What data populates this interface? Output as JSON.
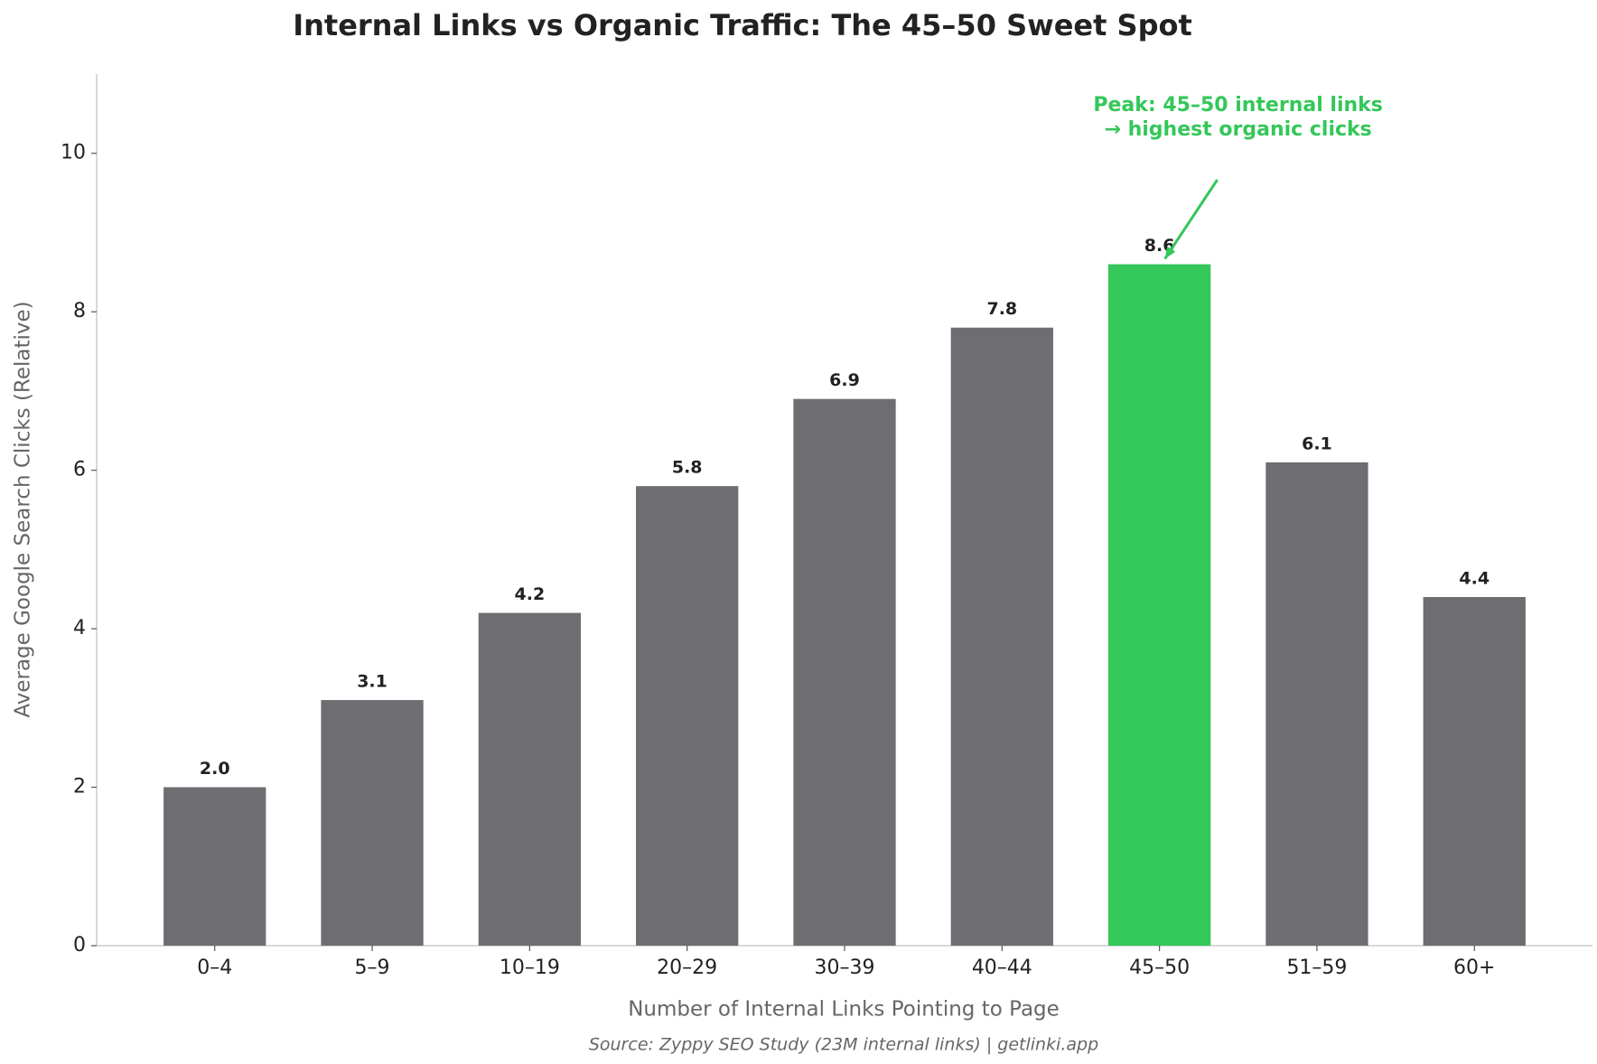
{
  "chart_data": {
    "type": "bar",
    "title": "Internal Links vs Organic Traffic: The 45–50 Sweet Spot",
    "x_label": "Number of Internal Links Pointing to Page",
    "y_label": "Average Google Search Clicks (Relative)",
    "source": "Source: Zyppy SEO Study (23M internal links) | getlinki.app",
    "categories": [
      "0–4",
      "5–9",
      "10–19",
      "20–29",
      "30–39",
      "40–44",
      "45–50",
      "51–59",
      "60+"
    ],
    "values": [
      2.0,
      3.1,
      4.2,
      5.8,
      6.9,
      7.8,
      8.6,
      6.1,
      4.4
    ],
    "value_labels": [
      "2.0",
      "3.1",
      "4.2",
      "5.8",
      "6.9",
      "7.8",
      "8.6",
      "6.1",
      "4.4"
    ],
    "colors": [
      "#6e6d72",
      "#6e6d72",
      "#6e6d72",
      "#6e6d72",
      "#6e6d72",
      "#6e6d72",
      "#34c759",
      "#6e6d72",
      "#6e6d72"
    ],
    "ylim": [
      0,
      11
    ],
    "yticks": [
      0,
      2,
      4,
      6,
      8,
      10
    ],
    "grid": false,
    "annotation": {
      "lines": [
        "Peak: 45–50 internal links",
        "→ highest organic clicks"
      ],
      "color": "#34c759",
      "target": 6
    }
  }
}
